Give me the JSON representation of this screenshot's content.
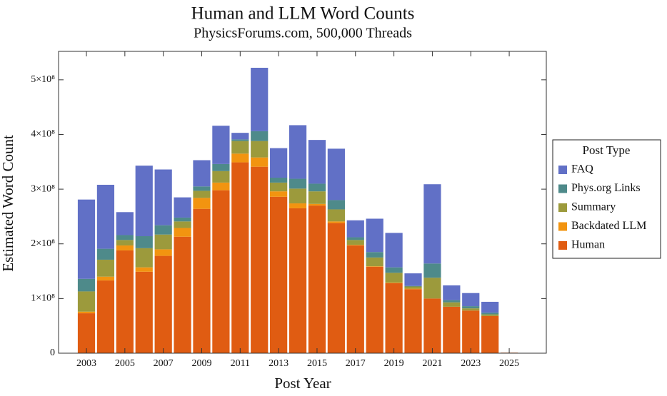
{
  "chart_data": {
    "type": "stacked_bar",
    "title": "Human and LLM Word Counts",
    "subtitle": "PhysicsForums.com, 500,000 Threads",
    "x_label": "Post Year",
    "y_label": "Estimated Word Count",
    "legend_title": "Post Type",
    "legend_position": "right",
    "x": [
      2003,
      2004,
      2005,
      2006,
      2007,
      2008,
      2009,
      2010,
      2011,
      2012,
      2013,
      2014,
      2015,
      2016,
      2017,
      2018,
      2019,
      2020,
      2021,
      2022,
      2023,
      2024,
      2025
    ],
    "xlim": [
      2001.55,
      2026.93
    ],
    "xticks": [
      2003,
      2005,
      2007,
      2009,
      2011,
      2013,
      2015,
      2017,
      2019,
      2021,
      2023,
      2025
    ],
    "ylim": [
      0,
      552000000
    ],
    "yticks": [
      0,
      {
        "value": 100000000,
        "label": "1×10⁸"
      },
      {
        "value": 200000000,
        "label": "2×10⁸"
      },
      {
        "value": 300000000,
        "label": "3×10⁸"
      },
      {
        "value": 400000000,
        "label": "4×10⁸"
      },
      {
        "value": 500000000,
        "label": "5×10⁸"
      }
    ],
    "series": [
      {
        "name": "Human",
        "color": "#e05c12",
        "values": [
          73000000,
          133000000,
          188000000,
          149000000,
          178000000,
          213000000,
          264000000,
          298000000,
          349000000,
          341000000,
          286000000,
          265000000,
          270000000,
          238000000,
          197000000,
          158000000,
          128000000,
          117000000,
          100000000,
          85000000,
          78000000,
          68000000,
          1000000
        ]
      },
      {
        "name": "Backdated LLM",
        "color": "#f29410",
        "values": [
          3000000,
          7000000,
          9000000,
          8000000,
          12000000,
          16000000,
          20000000,
          14000000,
          16000000,
          17000000,
          10000000,
          9000000,
          3000000,
          3000000,
          1000000,
          1000000,
          1000000,
          1000000,
          0,
          0,
          0,
          0,
          0
        ]
      },
      {
        "name": "Summary",
        "color": "#9c9a3c",
        "values": [
          37000000,
          31000000,
          10000000,
          35000000,
          27000000,
          12000000,
          13000000,
          21000000,
          23000000,
          30000000,
          16000000,
          27000000,
          23000000,
          22000000,
          9000000,
          16000000,
          18000000,
          4000000,
          38000000,
          8000000,
          4000000,
          3000000,
          0
        ]
      },
      {
        "name": "Phys.org Links",
        "color": "#4e8a8a",
        "values": [
          23000000,
          20000000,
          9000000,
          22000000,
          17000000,
          7000000,
          8000000,
          13000000,
          3000000,
          18000000,
          9000000,
          18000000,
          14000000,
          17000000,
          5000000,
          10000000,
          10000000,
          1000000,
          26000000,
          4000000,
          4000000,
          3000000,
          0
        ]
      },
      {
        "name": "FAQ",
        "color": "#6170c6",
        "values": [
          145000000,
          117000000,
          42000000,
          129000000,
          102000000,
          37000000,
          48000000,
          70000000,
          12000000,
          116000000,
          54000000,
          98000000,
          80000000,
          94000000,
          31000000,
          61000000,
          63000000,
          23000000,
          145000000,
          27000000,
          24000000,
          20000000,
          0
        ]
      }
    ]
  }
}
